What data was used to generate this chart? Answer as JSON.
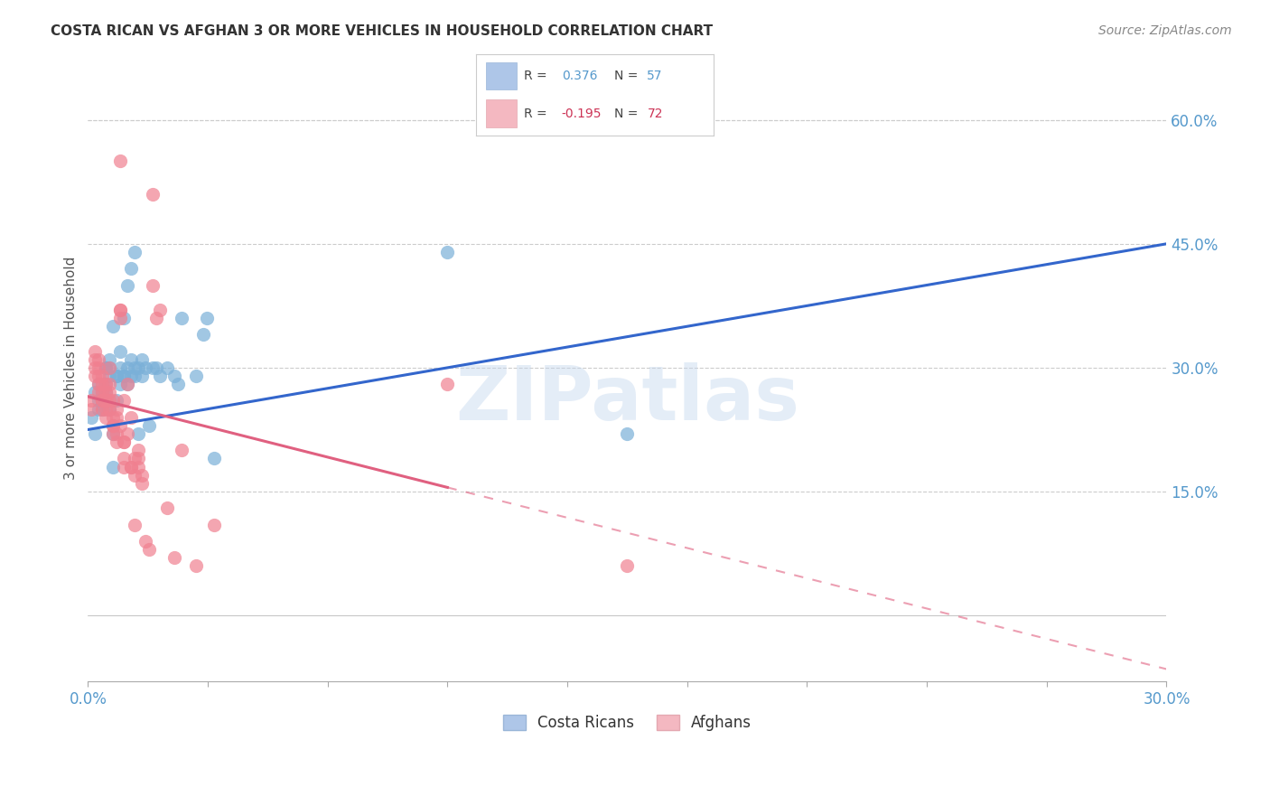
{
  "title": "COSTA RICAN VS AFGHAN 3 OR MORE VEHICLES IN HOUSEHOLD CORRELATION CHART",
  "source": "Source: ZipAtlas.com",
  "ylabel": "3 or more Vehicles in Household",
  "yticks_right": [
    "60.0%",
    "45.0%",
    "30.0%",
    "15.0%"
  ],
  "ytick_vals_right": [
    0.6,
    0.45,
    0.3,
    0.15
  ],
  "xmin": 0.0,
  "xmax": 0.3,
  "ymin": -0.08,
  "ymax": 0.68,
  "legend_bottom": [
    "Costa Ricans",
    "Afghans"
  ],
  "blue_dots": [
    [
      0.001,
      0.24
    ],
    [
      0.002,
      0.22
    ],
    [
      0.002,
      0.27
    ],
    [
      0.003,
      0.25
    ],
    [
      0.003,
      0.26
    ],
    [
      0.003,
      0.28
    ],
    [
      0.004,
      0.25
    ],
    [
      0.004,
      0.26
    ],
    [
      0.004,
      0.27
    ],
    [
      0.004,
      0.26
    ],
    [
      0.005,
      0.28
    ],
    [
      0.005,
      0.27
    ],
    [
      0.005,
      0.3
    ],
    [
      0.005,
      0.3
    ],
    [
      0.006,
      0.31
    ],
    [
      0.006,
      0.29
    ],
    [
      0.006,
      0.3
    ],
    [
      0.006,
      0.25
    ],
    [
      0.007,
      0.22
    ],
    [
      0.007,
      0.18
    ],
    [
      0.007,
      0.35
    ],
    [
      0.008,
      0.29
    ],
    [
      0.008,
      0.26
    ],
    [
      0.008,
      0.29
    ],
    [
      0.009,
      0.3
    ],
    [
      0.009,
      0.28
    ],
    [
      0.009,
      0.32
    ],
    [
      0.01,
      0.36
    ],
    [
      0.01,
      0.29
    ],
    [
      0.01,
      0.29
    ],
    [
      0.011,
      0.4
    ],
    [
      0.011,
      0.28
    ],
    [
      0.011,
      0.3
    ],
    [
      0.012,
      0.42
    ],
    [
      0.012,
      0.31
    ],
    [
      0.012,
      0.29
    ],
    [
      0.013,
      0.44
    ],
    [
      0.013,
      0.29
    ],
    [
      0.013,
      0.3
    ],
    [
      0.014,
      0.3
    ],
    [
      0.014,
      0.22
    ],
    [
      0.015,
      0.31
    ],
    [
      0.015,
      0.29
    ],
    [
      0.016,
      0.3
    ],
    [
      0.017,
      0.23
    ],
    [
      0.018,
      0.3
    ],
    [
      0.019,
      0.3
    ],
    [
      0.02,
      0.29
    ],
    [
      0.022,
      0.3
    ],
    [
      0.024,
      0.29
    ],
    [
      0.025,
      0.28
    ],
    [
      0.026,
      0.36
    ],
    [
      0.03,
      0.29
    ],
    [
      0.032,
      0.34
    ],
    [
      0.033,
      0.36
    ],
    [
      0.035,
      0.19
    ],
    [
      0.1,
      0.44
    ],
    [
      0.15,
      0.22
    ]
  ],
  "pink_dots": [
    [
      0.001,
      0.25
    ],
    [
      0.001,
      0.26
    ],
    [
      0.002,
      0.3
    ],
    [
      0.002,
      0.29
    ],
    [
      0.002,
      0.32
    ],
    [
      0.002,
      0.31
    ],
    [
      0.003,
      0.29
    ],
    [
      0.003,
      0.28
    ],
    [
      0.003,
      0.27
    ],
    [
      0.003,
      0.31
    ],
    [
      0.003,
      0.3
    ],
    [
      0.004,
      0.29
    ],
    [
      0.004,
      0.27
    ],
    [
      0.004,
      0.26
    ],
    [
      0.004,
      0.26
    ],
    [
      0.004,
      0.28
    ],
    [
      0.004,
      0.25
    ],
    [
      0.005,
      0.26
    ],
    [
      0.005,
      0.25
    ],
    [
      0.005,
      0.28
    ],
    [
      0.005,
      0.24
    ],
    [
      0.005,
      0.27
    ],
    [
      0.006,
      0.28
    ],
    [
      0.006,
      0.26
    ],
    [
      0.006,
      0.3
    ],
    [
      0.006,
      0.27
    ],
    [
      0.006,
      0.25
    ],
    [
      0.007,
      0.26
    ],
    [
      0.007,
      0.24
    ],
    [
      0.007,
      0.23
    ],
    [
      0.007,
      0.22
    ],
    [
      0.007,
      0.23
    ],
    [
      0.008,
      0.24
    ],
    [
      0.008,
      0.22
    ],
    [
      0.008,
      0.21
    ],
    [
      0.008,
      0.25
    ],
    [
      0.009,
      0.55
    ],
    [
      0.009,
      0.37
    ],
    [
      0.009,
      0.37
    ],
    [
      0.009,
      0.36
    ],
    [
      0.009,
      0.23
    ],
    [
      0.01,
      0.19
    ],
    [
      0.01,
      0.18
    ],
    [
      0.01,
      0.21
    ],
    [
      0.01,
      0.21
    ],
    [
      0.01,
      0.26
    ],
    [
      0.011,
      0.28
    ],
    [
      0.011,
      0.22
    ],
    [
      0.012,
      0.24
    ],
    [
      0.012,
      0.18
    ],
    [
      0.012,
      0.18
    ],
    [
      0.013,
      0.17
    ],
    [
      0.013,
      0.19
    ],
    [
      0.013,
      0.11
    ],
    [
      0.014,
      0.18
    ],
    [
      0.014,
      0.19
    ],
    [
      0.014,
      0.2
    ],
    [
      0.015,
      0.17
    ],
    [
      0.015,
      0.16
    ],
    [
      0.016,
      0.09
    ],
    [
      0.017,
      0.08
    ],
    [
      0.018,
      0.51
    ],
    [
      0.018,
      0.4
    ],
    [
      0.019,
      0.36
    ],
    [
      0.02,
      0.37
    ],
    [
      0.022,
      0.13
    ],
    [
      0.024,
      0.07
    ],
    [
      0.026,
      0.2
    ],
    [
      0.03,
      0.06
    ],
    [
      0.035,
      0.11
    ],
    [
      0.1,
      0.28
    ],
    [
      0.15,
      0.06
    ]
  ],
  "blue_line": {
    "x": [
      0.0,
      0.3
    ],
    "y": [
      0.225,
      0.45
    ]
  },
  "pink_line_solid": {
    "x": [
      0.0,
      0.1
    ],
    "y": [
      0.265,
      0.155
    ]
  },
  "pink_line_dashed": {
    "x": [
      0.1,
      0.3
    ],
    "y": [
      0.155,
      -0.065
    ]
  },
  "watermark": "ZIPatlas",
  "blue_color": "#7ab0d8",
  "pink_color": "#f08090",
  "blue_line_color": "#3366cc",
  "pink_line_color": "#e06080",
  "background_color": "#ffffff",
  "legend_blue_patch": "#aec6e8",
  "legend_pink_patch": "#f4b8c1",
  "axis_color": "#5599cc",
  "text_color": "#333333",
  "grid_color": "#cccccc"
}
